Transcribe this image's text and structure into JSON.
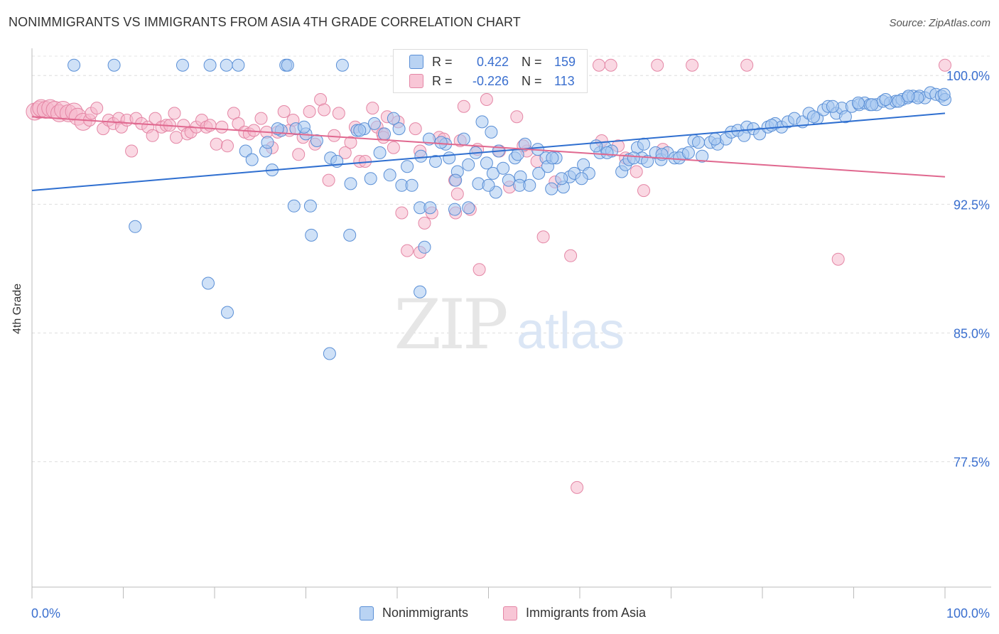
{
  "title": "NONIMMIGRANTS VS IMMIGRANTS FROM ASIA 4TH GRADE CORRELATION CHART",
  "source": "Source: ZipAtlas.com",
  "watermark": {
    "zip": "ZIP",
    "atlas": "atlas"
  },
  "legend": {
    "r_label": "R =",
    "n_label": "N =",
    "nonimmigrants": {
      "r": "0.422",
      "n": "159"
    },
    "immigrants": {
      "r": "-0.226",
      "n": "113"
    }
  },
  "bottom_legend": {
    "series1": "Nonimmigrants",
    "series2": "Immigrants from Asia"
  },
  "colors": {
    "blue_fill": "#a8c8f0",
    "blue_stroke": "#5a8fd6",
    "blue_line": "#2f6fd0",
    "blue_text": "#3a6fcf",
    "pink_fill": "#f6b8cc",
    "pink_stroke": "#e486a5",
    "pink_line": "#e0688f"
  },
  "chart_data": {
    "type": "scatter",
    "title": "NONIMMIGRANTS VS IMMIGRANTS FROM ASIA 4TH GRADE CORRELATION CHART",
    "xlabel": "",
    "ylabel": "4th Grade",
    "xlim": [
      0,
      100
    ],
    "ylim": [
      70.2,
      101.5
    ],
    "x_tick_labels": [
      "0.0%",
      "100.0%"
    ],
    "y_ticks": [
      100.0,
      92.5,
      85.0,
      77.5
    ],
    "y_tick_labels": [
      "100.0%",
      "92.5%",
      "85.0%",
      "77.5%"
    ],
    "grid": true,
    "legend_position": "top-center",
    "series": [
      {
        "name": "Nonimmigrants",
        "color": "#a8c8f0",
        "trend": {
          "x": [
            0,
            100
          ],
          "y": [
            93.3,
            97.8
          ]
        },
        "points": [
          [
            4.6,
            100.6
          ],
          [
            9.0,
            100.6
          ],
          [
            16.5,
            100.6
          ],
          [
            21.3,
            100.6
          ],
          [
            22.6,
            100.6
          ],
          [
            27.8,
            100.6
          ],
          [
            28.0,
            100.6
          ],
          [
            34.0,
            100.6
          ],
          [
            11.3,
            91.2
          ],
          [
            19.3,
            87.9
          ],
          [
            19.5,
            100.6
          ],
          [
            30.5,
            92.4
          ],
          [
            30.6,
            90.7
          ],
          [
            28.7,
            92.4
          ],
          [
            34.8,
            90.7
          ],
          [
            46.3,
            92.2
          ],
          [
            42.5,
            92.3
          ],
          [
            43.6,
            92.3
          ],
          [
            42.5,
            87.4
          ],
          [
            43.0,
            90.0
          ],
          [
            21.4,
            86.2
          ],
          [
            32.6,
            83.8
          ],
          [
            23.4,
            95.6
          ],
          [
            24.1,
            95.1
          ],
          [
            25.6,
            95.6
          ],
          [
            25.8,
            96.1
          ],
          [
            26.3,
            94.5
          ],
          [
            27.3,
            96.8
          ],
          [
            28.9,
            96.9
          ],
          [
            30.0,
            96.6
          ],
          [
            31.2,
            96.2
          ],
          [
            32.7,
            95.2
          ],
          [
            33.4,
            95.0
          ],
          [
            34.9,
            93.7
          ],
          [
            35.6,
            96.8
          ],
          [
            36.4,
            96.9
          ],
          [
            37.1,
            94.0
          ],
          [
            38.1,
            95.5
          ],
          [
            38.6,
            96.6
          ],
          [
            39.2,
            94.2
          ],
          [
            40.2,
            96.9
          ],
          [
            40.5,
            93.6
          ],
          [
            41.1,
            94.7
          ],
          [
            41.6,
            93.6
          ],
          [
            42.6,
            95.3
          ],
          [
            43.5,
            96.3
          ],
          [
            44.2,
            95.0
          ],
          [
            45.3,
            96.0
          ],
          [
            45.7,
            95.2
          ],
          [
            46.6,
            94.4
          ],
          [
            47.3,
            96.3
          ],
          [
            47.8,
            94.8
          ],
          [
            48.6,
            95.5
          ],
          [
            49.3,
            97.3
          ],
          [
            49.8,
            94.9
          ],
          [
            50.5,
            94.3
          ],
          [
            51.1,
            95.6
          ],
          [
            51.6,
            94.6
          ],
          [
            52.2,
            93.9
          ],
          [
            53.5,
            94.1
          ],
          [
            53.4,
            93.6
          ],
          [
            54.5,
            93.6
          ],
          [
            55.5,
            94.3
          ],
          [
            56.3,
            95.2
          ],
          [
            57.4,
            95.2
          ],
          [
            58.2,
            93.5
          ],
          [
            58.9,
            94.1
          ],
          [
            59.4,
            94.3
          ],
          [
            60.4,
            94.8
          ],
          [
            61.0,
            94.3
          ],
          [
            62.2,
            95.5
          ],
          [
            62.8,
            95.8
          ],
          [
            63.5,
            95.6
          ],
          [
            64.6,
            94.4
          ],
          [
            65.0,
            94.8
          ],
          [
            65.4,
            95.1
          ],
          [
            66.3,
            95.8
          ],
          [
            66.8,
            95.2
          ],
          [
            67.4,
            95.0
          ],
          [
            68.3,
            95.5
          ],
          [
            68.9,
            95.1
          ],
          [
            69.6,
            95.5
          ],
          [
            70.4,
            95.2
          ],
          [
            71.3,
            95.4
          ],
          [
            72.5,
            96.2
          ],
          [
            73.4,
            95.3
          ],
          [
            74.3,
            96.1
          ],
          [
            75.1,
            96.0
          ],
          [
            76.0,
            96.3
          ],
          [
            76.6,
            96.7
          ],
          [
            77.3,
            96.8
          ],
          [
            78.3,
            97.0
          ],
          [
            79.0,
            96.9
          ],
          [
            79.7,
            96.6
          ],
          [
            80.6,
            97.0
          ],
          [
            81.4,
            97.2
          ],
          [
            82.1,
            97.0
          ],
          [
            82.8,
            97.3
          ],
          [
            83.5,
            97.5
          ],
          [
            84.4,
            97.3
          ],
          [
            85.1,
            97.8
          ],
          [
            86.0,
            97.5
          ],
          [
            86.7,
            98.0
          ],
          [
            87.2,
            98.2
          ],
          [
            88.1,
            97.8
          ],
          [
            88.7,
            98.1
          ],
          [
            89.1,
            97.6
          ],
          [
            89.8,
            98.2
          ],
          [
            90.6,
            98.3
          ],
          [
            91.2,
            98.4
          ],
          [
            91.8,
            98.3
          ],
          [
            92.5,
            98.3
          ],
          [
            93.2,
            98.5
          ],
          [
            94.0,
            98.4
          ],
          [
            94.6,
            98.5
          ],
          [
            95.3,
            98.6
          ],
          [
            95.9,
            98.7
          ],
          [
            96.5,
            98.8
          ],
          [
            97.2,
            98.8
          ],
          [
            97.8,
            98.7
          ],
          [
            98.4,
            99.0
          ],
          [
            99.0,
            98.9
          ],
          [
            99.6,
            98.8
          ],
          [
            100.0,
            98.6
          ],
          [
            99.9,
            98.9
          ],
          [
            97.0,
            98.7
          ],
          [
            93.5,
            98.6
          ],
          [
            90.5,
            98.4
          ],
          [
            55.4,
            95.7
          ],
          [
            56.5,
            94.7
          ],
          [
            60.2,
            94.0
          ],
          [
            61.8,
            95.9
          ],
          [
            67.0,
            96.0
          ],
          [
            73.0,
            96.1
          ],
          [
            74.8,
            96.3
          ],
          [
            78.0,
            96.5
          ],
          [
            81.0,
            97.1
          ],
          [
            85.6,
            97.6
          ],
          [
            87.7,
            98.2
          ],
          [
            92.0,
            98.3
          ],
          [
            94.9,
            98.5
          ],
          [
            96.0,
            98.8
          ],
          [
            48.9,
            93.7
          ],
          [
            52.9,
            95.2
          ],
          [
            54.0,
            96.0
          ],
          [
            58.0,
            94.0
          ],
          [
            63.0,
            95.5
          ],
          [
            65.9,
            95.2
          ],
          [
            69.0,
            95.4
          ],
          [
            70.9,
            95.2
          ],
          [
            26.9,
            96.9
          ],
          [
            29.8,
            97.0
          ],
          [
            37.5,
            97.2
          ],
          [
            39.6,
            97.5
          ],
          [
            44.8,
            96.1
          ],
          [
            50.3,
            96.7
          ],
          [
            57.0,
            95.2
          ],
          [
            71.9,
            95.5
          ],
          [
            46.4,
            93.9
          ],
          [
            50.8,
            93.2
          ],
          [
            47.8,
            92.3
          ],
          [
            50.0,
            93.6
          ],
          [
            53.2,
            95.4
          ],
          [
            56.9,
            93.4
          ],
          [
            35.9,
            96.8
          ]
        ]
      },
      {
        "name": "Immigrants from Asia",
        "color": "#f6b8cc",
        "trend": {
          "x": [
            0,
            100
          ],
          "y": [
            97.6,
            94.1
          ]
        },
        "points": [
          [
            0.3,
            97.9
          ],
          [
            0.8,
            98.0
          ],
          [
            1.0,
            98.1
          ],
          [
            1.5,
            98.0
          ],
          [
            2.0,
            98.1
          ],
          [
            2.5,
            98.0
          ],
          [
            3.0,
            97.8
          ],
          [
            3.4,
            98.0
          ],
          [
            4.0,
            97.8
          ],
          [
            4.6,
            97.9
          ],
          [
            5.0,
            97.6
          ],
          [
            5.6,
            97.3
          ],
          [
            6.3,
            97.4
          ],
          [
            6.5,
            97.8
          ],
          [
            7.1,
            98.1
          ],
          [
            7.8,
            96.9
          ],
          [
            8.4,
            97.4
          ],
          [
            8.9,
            97.2
          ],
          [
            9.5,
            97.5
          ],
          [
            9.8,
            97.0
          ],
          [
            10.4,
            97.4
          ],
          [
            10.9,
            95.6
          ],
          [
            11.4,
            97.5
          ],
          [
            12.0,
            97.2
          ],
          [
            12.7,
            97.0
          ],
          [
            13.2,
            96.5
          ],
          [
            13.5,
            97.5
          ],
          [
            14.2,
            97.0
          ],
          [
            14.7,
            97.1
          ],
          [
            15.1,
            97.1
          ],
          [
            15.6,
            97.8
          ],
          [
            15.8,
            96.4
          ],
          [
            16.6,
            97.1
          ],
          [
            17.0,
            96.6
          ],
          [
            17.4,
            96.7
          ],
          [
            18.0,
            97.0
          ],
          [
            18.6,
            97.4
          ],
          [
            19.1,
            97.0
          ],
          [
            19.5,
            97.1
          ],
          [
            20.2,
            96.0
          ],
          [
            20.8,
            97.0
          ],
          [
            21.4,
            95.9
          ],
          [
            22.1,
            97.8
          ],
          [
            22.6,
            97.2
          ],
          [
            23.3,
            96.7
          ],
          [
            23.8,
            96.6
          ],
          [
            24.3,
            96.8
          ],
          [
            25.1,
            97.5
          ],
          [
            25.7,
            96.7
          ],
          [
            26.3,
            95.8
          ],
          [
            26.9,
            96.7
          ],
          [
            27.6,
            97.9
          ],
          [
            28.2,
            96.8
          ],
          [
            28.6,
            97.4
          ],
          [
            29.2,
            95.4
          ],
          [
            29.7,
            96.4
          ],
          [
            30.4,
            97.9
          ],
          [
            31.0,
            96.0
          ],
          [
            31.6,
            98.6
          ],
          [
            32.0,
            98.0
          ],
          [
            32.5,
            93.9
          ],
          [
            33.1,
            96.5
          ],
          [
            33.6,
            97.8
          ],
          [
            34.3,
            95.5
          ],
          [
            34.9,
            96.1
          ],
          [
            35.4,
            97.0
          ],
          [
            35.9,
            95.0
          ],
          [
            36.5,
            95.0
          ],
          [
            37.3,
            98.1
          ],
          [
            37.8,
            97.0
          ],
          [
            38.4,
            96.6
          ],
          [
            38.9,
            97.6
          ],
          [
            39.6,
            95.8
          ],
          [
            40.1,
            97.3
          ],
          [
            40.5,
            92.0
          ],
          [
            41.1,
            89.8
          ],
          [
            42.0,
            96.9
          ],
          [
            42.5,
            89.7
          ],
          [
            43.0,
            91.4
          ],
          [
            43.8,
            92.0
          ],
          [
            44.6,
            96.4
          ],
          [
            45.1,
            96.3
          ],
          [
            46.3,
            93.9
          ],
          [
            46.9,
            96.2
          ],
          [
            47.3,
            98.2
          ],
          [
            48.8,
            95.7
          ],
          [
            49.8,
            98.6
          ],
          [
            50.8,
            100.5
          ],
          [
            52.3,
            93.5
          ],
          [
            53.1,
            97.6
          ],
          [
            54.2,
            95.6
          ],
          [
            56.0,
            90.6
          ],
          [
            57.3,
            93.8
          ],
          [
            59.0,
            89.5
          ],
          [
            59.7,
            76.0
          ],
          [
            62.1,
            100.6
          ],
          [
            63.4,
            100.6
          ],
          [
            68.5,
            100.6
          ],
          [
            62.4,
            96.2
          ],
          [
            64.2,
            95.9
          ],
          [
            66.2,
            94.4
          ],
          [
            69.1,
            95.7
          ],
          [
            72.3,
            100.6
          ],
          [
            78.3,
            100.6
          ],
          [
            88.3,
            89.3
          ],
          [
            100.0,
            100.6
          ],
          [
            46.4,
            92.0
          ],
          [
            46.6,
            93.1
          ],
          [
            52.6,
            100.5
          ],
          [
            51.2,
            95.6
          ],
          [
            55.3,
            95.0
          ],
          [
            53.8,
            95.9
          ],
          [
            65.0,
            95.2
          ],
          [
            67.0,
            93.3
          ],
          [
            42.5,
            95.6
          ],
          [
            38.5,
            96.4
          ],
          [
            49.0,
            88.7
          ],
          [
            48.0,
            92.2
          ]
        ]
      }
    ]
  }
}
